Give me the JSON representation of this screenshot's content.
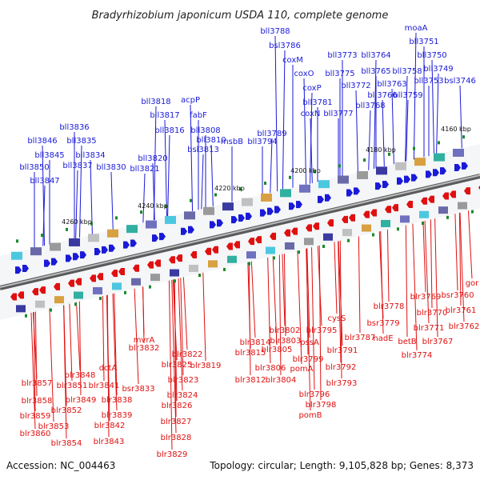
{
  "title": "Bradyrhizobium japonicum USDA 110, complete genome",
  "footer": {
    "accession": "Accession: NC_004463",
    "summary": "Topology: circular; Length: 9,105,828 bp; Genes: 8,373"
  },
  "colors": {
    "forward": "#1a1ad8",
    "reverse": "#e01010",
    "backbone": "#888888",
    "marker": "#1a8a2a"
  },
  "ticks": [
    "4160 kbp",
    "4180 kbp",
    "4200 kbp",
    "4220 kbp",
    "4240 kbp",
    "4260 kbp"
  ],
  "top_labels": [
    "moaA",
    "bll3751",
    "bll3750",
    "bll3749",
    "bll3753",
    "bsl3746",
    "bll3758",
    "bll3765",
    "bll3763",
    "bll3764",
    "bll3773",
    "bll3766",
    "bll3759",
    "bll3775",
    "bll3772",
    "bll3768",
    "bll3777",
    "bll3788",
    "bsl3786",
    "coxM",
    "coxO",
    "coxP",
    "bll3781",
    "coxN",
    "bll3789",
    "bll3794",
    "acpP",
    "bll3818",
    "fabF",
    "bll3817",
    "bll3816",
    "bll3808",
    "bll3810",
    "bsl3813",
    "msbB",
    "bll3820",
    "bll3821",
    "bll3836",
    "bll3846",
    "bll3835",
    "bll3845",
    "bll3834",
    "bll3837",
    "bll3850",
    "bll3830",
    "bll3847"
  ],
  "bottom_labels": [
    "gor",
    "bsr3760",
    "blr3761",
    "blr3762",
    "blr3769",
    "blr3770",
    "blr3771",
    "blr3767",
    "blr3778",
    "bsr3779",
    "nadE",
    "betB",
    "blr3774",
    "cysS",
    "blr3787",
    "blr3791",
    "blr3792",
    "blr3793",
    "blr3795",
    "pssA",
    "blr3799",
    "pomA",
    "blr3796",
    "blr3798",
    "pomB",
    "blr3802",
    "blr3803",
    "blr3805",
    "blr3806",
    "blr3804",
    "blr3814",
    "blr3815",
    "blr3812",
    "blr3822",
    "blr3819",
    "mvrA",
    "blr3825",
    "blr3823",
    "blr3832",
    "blr3824",
    "blr3826",
    "blr3827",
    "blr3828",
    "blr3829",
    "dctA",
    "bsr3833",
    "blr3838",
    "blr3841",
    "blr3839",
    "blr3842",
    "blr3843",
    "blr3848",
    "blr3851",
    "blr3849",
    "blr3857",
    "blr3852",
    "blr3858",
    "blr3853",
    "blr3854",
    "blr3859",
    "blr3860"
  ]
}
